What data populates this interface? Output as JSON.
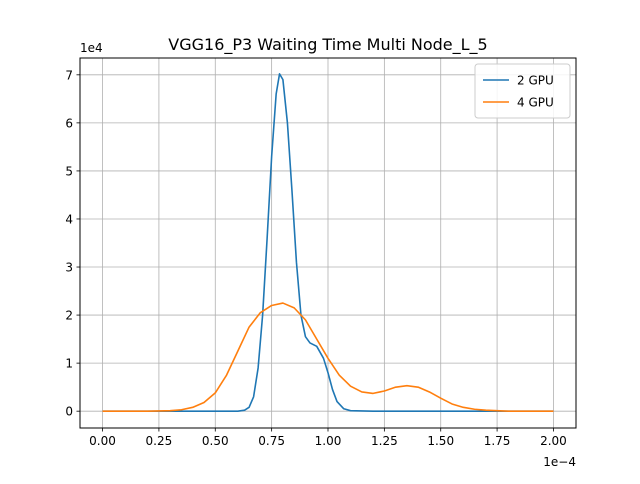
{
  "chart_data": {
    "type": "line",
    "title": "VGG16_P3 Waiting Time Multi Node_L_5",
    "xlabel": "",
    "ylabel": "",
    "x_offset_label": "1e−4",
    "y_offset_label": "1e4",
    "xlim": [
      -0.1,
      2.1
    ],
    "ylim": [
      -0.35,
      7.35
    ],
    "x_ticks": [
      0.0,
      0.25,
      0.5,
      0.75,
      1.0,
      1.25,
      1.5,
      1.75,
      2.0
    ],
    "x_tick_labels": [
      "0.00",
      "0.25",
      "0.50",
      "0.75",
      "1.00",
      "1.25",
      "1.50",
      "1.75",
      "2.00"
    ],
    "y_ticks": [
      0,
      1,
      2,
      3,
      4,
      5,
      6,
      7
    ],
    "y_tick_labels": [
      "0",
      "1",
      "2",
      "3",
      "4",
      "5",
      "6",
      "7"
    ],
    "grid": true,
    "legend_position": "top-right",
    "series": [
      {
        "name": "2 GPU",
        "color": "#1f77b4",
        "points": [
          [
            0.0,
            0
          ],
          [
            0.55,
            0
          ],
          [
            0.6,
            0
          ],
          [
            0.63,
            0.02
          ],
          [
            0.65,
            0.08
          ],
          [
            0.67,
            0.3
          ],
          [
            0.69,
            0.9
          ],
          [
            0.71,
            2.0
          ],
          [
            0.73,
            3.6
          ],
          [
            0.75,
            5.3
          ],
          [
            0.77,
            6.6
          ],
          [
            0.785,
            7.02
          ],
          [
            0.8,
            6.9
          ],
          [
            0.82,
            6.0
          ],
          [
            0.84,
            4.6
          ],
          [
            0.86,
            3.1
          ],
          [
            0.88,
            2.0
          ],
          [
            0.9,
            1.55
          ],
          [
            0.92,
            1.42
          ],
          [
            0.95,
            1.35
          ],
          [
            0.98,
            1.1
          ],
          [
            1.0,
            0.8
          ],
          [
            1.02,
            0.45
          ],
          [
            1.04,
            0.2
          ],
          [
            1.07,
            0.05
          ],
          [
            1.1,
            0.01
          ],
          [
            1.2,
            0
          ],
          [
            1.5,
            0
          ],
          [
            2.0,
            0
          ]
        ]
      },
      {
        "name": "4 GPU",
        "color": "#ff7f0e",
        "points": [
          [
            0.0,
            0
          ],
          [
            0.2,
            0
          ],
          [
            0.3,
            0.01
          ],
          [
            0.35,
            0.03
          ],
          [
            0.4,
            0.08
          ],
          [
            0.45,
            0.18
          ],
          [
            0.5,
            0.38
          ],
          [
            0.55,
            0.75
          ],
          [
            0.6,
            1.25
          ],
          [
            0.65,
            1.75
          ],
          [
            0.7,
            2.05
          ],
          [
            0.75,
            2.2
          ],
          [
            0.8,
            2.25
          ],
          [
            0.85,
            2.15
          ],
          [
            0.9,
            1.9
          ],
          [
            0.95,
            1.5
          ],
          [
            1.0,
            1.1
          ],
          [
            1.05,
            0.75
          ],
          [
            1.1,
            0.52
          ],
          [
            1.15,
            0.4
          ],
          [
            1.2,
            0.37
          ],
          [
            1.25,
            0.42
          ],
          [
            1.3,
            0.5
          ],
          [
            1.35,
            0.53
          ],
          [
            1.4,
            0.5
          ],
          [
            1.45,
            0.4
          ],
          [
            1.5,
            0.27
          ],
          [
            1.55,
            0.15
          ],
          [
            1.6,
            0.08
          ],
          [
            1.65,
            0.04
          ],
          [
            1.7,
            0.02
          ],
          [
            1.8,
            0
          ],
          [
            2.0,
            0
          ]
        ]
      }
    ]
  }
}
